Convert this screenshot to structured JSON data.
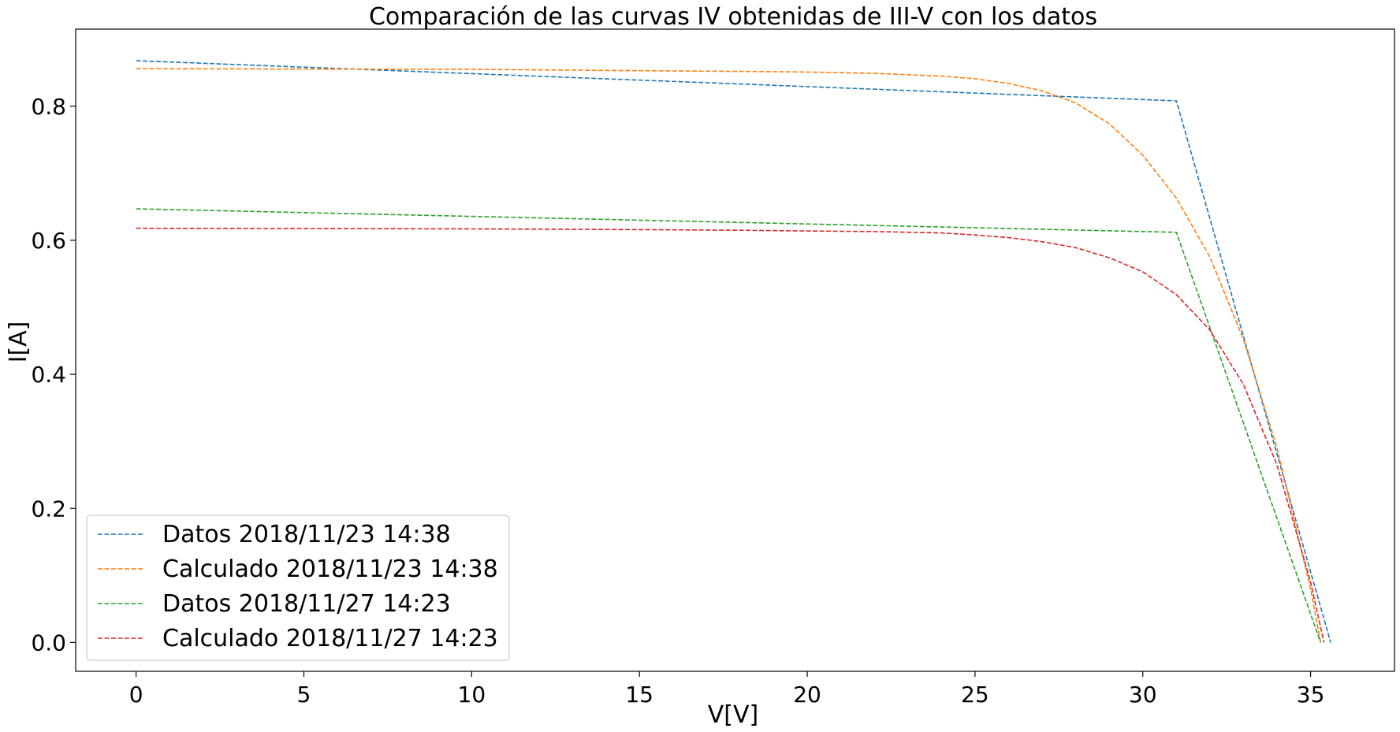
{
  "chart_data": {
    "type": "line",
    "title": "Comparación de las curvas IV obtenidas de III-V con los datos",
    "xlabel": "V[V]",
    "ylabel": "I[A]",
    "xlim": [
      -1.8,
      37.5
    ],
    "ylim": [
      -0.043,
      0.915
    ],
    "xticks": [
      0,
      5,
      10,
      15,
      20,
      25,
      30,
      35
    ],
    "yticks": [
      0.0,
      0.2,
      0.4,
      0.6,
      0.8
    ],
    "ytick_labels": [
      "0.0",
      "0.2",
      "0.4",
      "0.6",
      "0.8"
    ],
    "grid": false,
    "legend": "lower-left",
    "series": [
      {
        "name": "Datos 2018/11/23 14:38",
        "color": "#1f77b4",
        "x": [
          0,
          31.0,
          35.6
        ],
        "y": [
          0.868,
          0.808,
          0.0
        ]
      },
      {
        "name": "Calculado 2018/11/23 14:38",
        "color": "#ff7f0e",
        "x": [
          0,
          10,
          15,
          18,
          20,
          22,
          24,
          25,
          26,
          27,
          28,
          29,
          30,
          31,
          32,
          33,
          34,
          35,
          35.3
        ],
        "y": [
          0.856,
          0.855,
          0.853,
          0.852,
          0.851,
          0.849,
          0.845,
          0.841,
          0.834,
          0.823,
          0.805,
          0.774,
          0.727,
          0.663,
          0.575,
          0.452,
          0.29,
          0.08,
          0.0
        ]
      },
      {
        "name": "Datos 2018/11/27 14:23",
        "color": "#2ca02c",
        "x": [
          0,
          31.0,
          35.3
        ],
        "y": [
          0.647,
          0.612,
          0.0
        ]
      },
      {
        "name": "Calculado 2018/11/27 14:23",
        "color": "#d62728",
        "x": [
          0,
          10,
          15,
          18,
          20,
          22,
          24,
          25,
          26,
          27,
          28,
          29,
          30,
          31,
          32,
          33,
          34,
          35,
          35.4
        ],
        "y": [
          0.618,
          0.617,
          0.616,
          0.615,
          0.614,
          0.613,
          0.611,
          0.608,
          0.604,
          0.598,
          0.589,
          0.574,
          0.553,
          0.519,
          0.466,
          0.385,
          0.265,
          0.09,
          0.0
        ]
      }
    ]
  }
}
